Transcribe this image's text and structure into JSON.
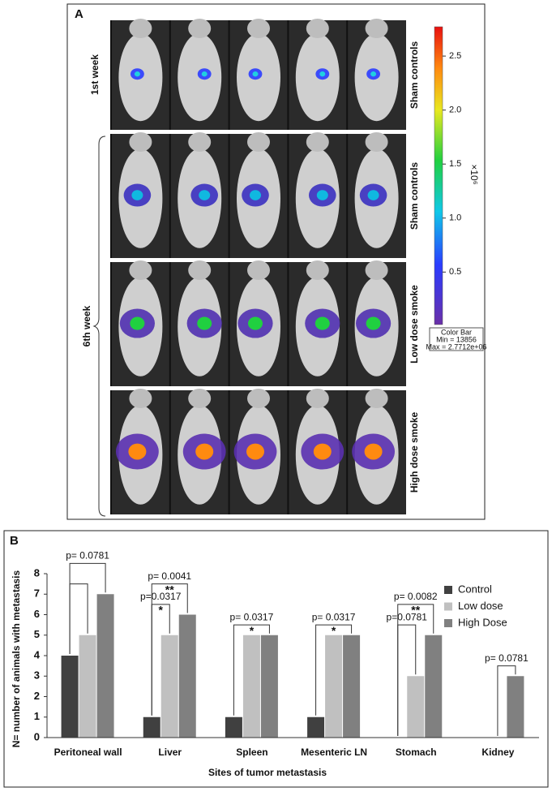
{
  "panel_a": {
    "label": "A",
    "rows": [
      {
        "label": "Sham controls"
      },
      {
        "label": "Sham controls"
      },
      {
        "label": "Low dose smoke"
      },
      {
        "label": "High dose smoke"
      }
    ],
    "week_labels": [
      "1st week",
      "6th week"
    ],
    "colorbar": {
      "lim": [
        0.013856,
        2.7712
      ],
      "ticks": [
        0.5,
        {
          "value": 1,
          "label": "1.0"
        },
        1.5,
        {
          "value": 2,
          "label": "2.0"
        },
        2.5
      ],
      "unit": "×10⁶",
      "caption": [
        "Color Bar",
        "Min = 13856",
        "Max = 2.7712e+06"
      ]
    }
  },
  "chart_data": {
    "type": "bar",
    "panel_label": "B",
    "x_label": "Sites of tumor metastasis",
    "y_label": "N= number of animals with metastasis",
    "categories": [
      "Peritoneal wall",
      "Liver",
      "Spleen",
      "Mesenteric LN",
      "Stomach",
      "Kidney"
    ],
    "series": [
      {
        "name": "Control",
        "color": "#404040",
        "values": [
          4,
          1,
          1,
          1,
          0,
          0
        ]
      },
      {
        "name": "Low dose",
        "color": "#c0c0c0",
        "values": [
          5,
          5,
          5,
          5,
          3,
          0
        ]
      },
      {
        "name": "High Dose",
        "color": "#808080",
        "values": [
          7,
          6,
          5,
          5,
          5,
          3
        ]
      }
    ],
    "ylim": [
      0,
      8
    ],
    "yticks": [
      0,
      1,
      2,
      3,
      4,
      5,
      6,
      7,
      8
    ],
    "legend": "upper right",
    "annotations": [
      {
        "category": "Peritoneal wall",
        "from": "Control",
        "to": "Low dose"
      },
      {
        "category": "Peritoneal wall",
        "from": "Control",
        "to": "High Dose",
        "text": "p= 0.0781"
      },
      {
        "category": "Liver",
        "from": "Control",
        "to": "Low dose",
        "text": "p=0.0317",
        "stars": "*"
      },
      {
        "category": "Liver",
        "from": "Control",
        "to": "High Dose",
        "text": "p= 0.0041",
        "stars": "**"
      },
      {
        "category": "Spleen",
        "from": "Control",
        "to": "High Dose",
        "text": "p= 0.0317",
        "stars": "*"
      },
      {
        "category": "Mesenteric LN",
        "from": "Control",
        "to": "High Dose",
        "text": "p= 0.0317",
        "stars": "*"
      },
      {
        "category": "Stomach",
        "from": "Control",
        "to": "Low dose",
        "text": "p=0.0781"
      },
      {
        "category": "Stomach",
        "from": "Control",
        "to": "High Dose",
        "text": "p= 0.0082",
        "stars": "**"
      },
      {
        "category": "Kidney",
        "from": "Low dose",
        "to": "High Dose",
        "text": "p= 0.0781"
      }
    ]
  }
}
